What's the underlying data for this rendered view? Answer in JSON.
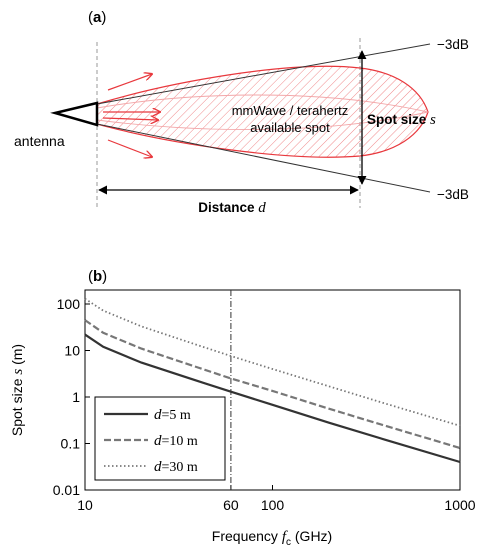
{
  "panel_a": {
    "label_open": "(",
    "label_letter": "a",
    "label_close": ")",
    "antenna_label": "antenna",
    "beam_text_line1": "mmWave / terahertz",
    "beam_text_line2": "available spot",
    "spot_size_label": "Spot size",
    "spot_size_symbol": "s",
    "distance_label": "Distance",
    "distance_symbol": "d",
    "edge_top_label": "−3dB",
    "edge_bottom_label": "−3dB",
    "colors": {
      "beam": "#e8383d",
      "lines": "#000000",
      "dash": "#999999"
    }
  },
  "panel_b": {
    "label_open": "(",
    "label_letter": "b",
    "label_close": ")",
    "ylabel_prefix": "Spot size",
    "ylabel_symbol": "s",
    "ylabel_unit": "(m)",
    "xlabel_prefix": "Frequency",
    "xlabel_symbol": "f",
    "xlabel_sub": "c",
    "xlabel_unit": "(GHz)"
  },
  "chart_data": {
    "type": "line",
    "xscale": "log",
    "yscale": "log",
    "xlim": [
      10,
      1000
    ],
    "ylim": [
      0.01,
      200
    ],
    "xticks": [
      10,
      60,
      100,
      1000
    ],
    "xtick_labels": [
      "10",
      "60",
      "100",
      "1000"
    ],
    "yticks": [
      100,
      10,
      1,
      0.1,
      0.01
    ],
    "ytick_labels": [
      "100",
      "10",
      "1",
      "0.1",
      "0.01"
    ],
    "vline_x": 60,
    "legend_position": "bottom-left",
    "series": [
      {
        "symbol": "d",
        "name": "=5 m",
        "style": "solid",
        "color": "#333333",
        "x": [
          10,
          12.5,
          20,
          40,
          60,
          100,
          200,
          400,
          1000
        ],
        "y": [
          22,
          12,
          5.5,
          2.2,
          1.3,
          0.68,
          0.28,
          0.12,
          0.04
        ]
      },
      {
        "symbol": "d",
        "name": "=10 m",
        "style": "dashed",
        "color": "#777777",
        "x": [
          10,
          12.5,
          20,
          40,
          60,
          100,
          200,
          400,
          1000
        ],
        "y": [
          45,
          24,
          11,
          4.3,
          2.5,
          1.35,
          0.56,
          0.24,
          0.08
        ]
      },
      {
        "symbol": "d",
        "name": "=30 m",
        "style": "dotted",
        "color": "#777777",
        "x": [
          10,
          12.5,
          20,
          40,
          60,
          100,
          200,
          400,
          1000
        ],
        "y": [
          130,
          72,
          33,
          13,
          7.6,
          4.0,
          1.7,
          0.72,
          0.24
        ]
      }
    ]
  }
}
